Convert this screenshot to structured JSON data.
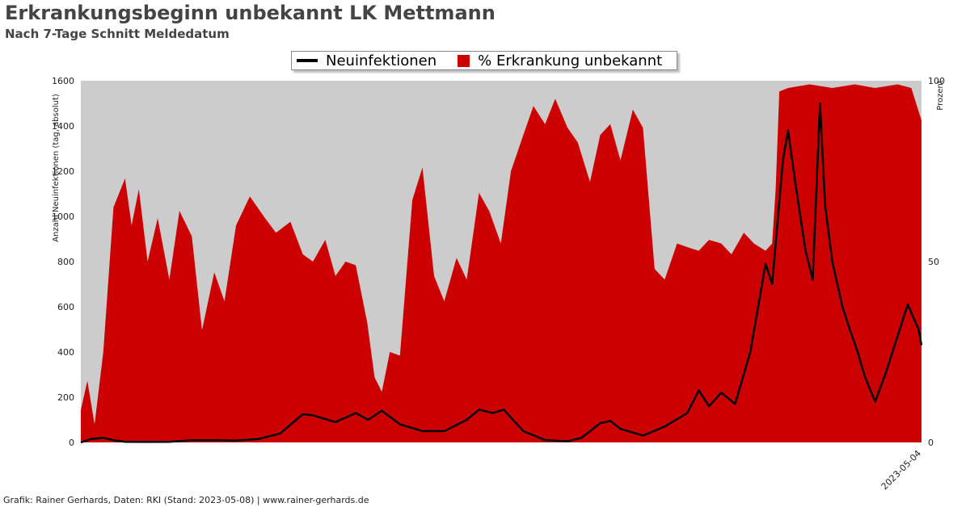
{
  "title": "Erkrankungsbeginn unbekannt LK Mettmann",
  "subtitle": "Nach 7-Tage Schnitt Meldedatum",
  "footer": "Grafik: Rainer Gerhards, Daten: RKI (Stand: 2023-05-08) | www.rainer-gerhards.de",
  "colors": {
    "plot_bg": "#cccccc",
    "area": "#cc0000",
    "line": "#000000"
  },
  "chart_data": {
    "type": "area",
    "title": "Erkrankungsbeginn unbekannt LK Mettmann",
    "subtitle": "Nach 7-Tage Schnitt Meldedatum",
    "ylabel_left": "Anzahl Neuinfektionen (tag, absolut)",
    "ylabel_right": "Prozent",
    "ylim_left": [
      0,
      1600
    ],
    "ylim_right": [
      0,
      100
    ],
    "yticks_left": [
      "0",
      "200",
      "400",
      "600",
      "800",
      "1000",
      "1200",
      "1400",
      "1600"
    ],
    "yticks_right": [
      "0",
      "50",
      "100"
    ],
    "legend_position": "top-center",
    "grid": false,
    "x_range": [
      "2020-03-01",
      "2023-05-04"
    ],
    "xtick_labels_legible": [
      "2023-05-04"
    ],
    "series": [
      {
        "name": "Neuinfektionen",
        "type": "line",
        "axis": "left",
        "points": [
          [
            "2020-03-01",
            0
          ],
          [
            "2020-03-15",
            15
          ],
          [
            "2020-04-01",
            20
          ],
          [
            "2020-04-15",
            10
          ],
          [
            "2020-05-01",
            3
          ],
          [
            "2020-06-01",
            2
          ],
          [
            "2020-07-01",
            3
          ],
          [
            "2020-08-01",
            10
          ],
          [
            "2020-09-01",
            10
          ],
          [
            "2020-10-01",
            8
          ],
          [
            "2020-11-01",
            15
          ],
          [
            "2020-12-01",
            40
          ],
          [
            "2021-01-01",
            125
          ],
          [
            "2021-01-15",
            120
          ],
          [
            "2021-02-15",
            90
          ],
          [
            "2021-03-15",
            130
          ],
          [
            "2021-04-01",
            100
          ],
          [
            "2021-04-20",
            140
          ],
          [
            "2021-05-15",
            80
          ],
          [
            "2021-06-15",
            50
          ],
          [
            "2021-07-15",
            50
          ],
          [
            "2021-08-15",
            100
          ],
          [
            "2021-09-01",
            145
          ],
          [
            "2021-09-20",
            130
          ],
          [
            "2021-10-05",
            145
          ],
          [
            "2021-11-01",
            50
          ],
          [
            "2021-12-01",
            10
          ],
          [
            "2022-01-01",
            5
          ],
          [
            "2022-01-20",
            20
          ],
          [
            "2022-02-15",
            85
          ],
          [
            "2022-03-01",
            95
          ],
          [
            "2022-03-15",
            60
          ],
          [
            "2022-04-15",
            30
          ],
          [
            "2022-05-15",
            70
          ],
          [
            "2022-06-15",
            130
          ],
          [
            "2022-07-01",
            230
          ],
          [
            "2022-07-15",
            160
          ],
          [
            "2022-08-01",
            220
          ],
          [
            "2022-08-20",
            170
          ],
          [
            "2022-09-10",
            400
          ],
          [
            "2022-10-01",
            790
          ],
          [
            "2022-10-10",
            700
          ],
          [
            "2022-10-25",
            1250
          ],
          [
            "2022-11-01",
            1380
          ],
          [
            "2022-11-10",
            1170
          ],
          [
            "2022-11-25",
            850
          ],
          [
            "2022-12-05",
            720
          ],
          [
            "2022-12-15",
            1500
          ],
          [
            "2022-12-22",
            1050
          ],
          [
            "2023-01-01",
            800
          ],
          [
            "2023-01-15",
            600
          ],
          [
            "2023-01-25",
            500
          ],
          [
            "2023-02-05",
            400
          ],
          [
            "2023-02-15",
            290
          ],
          [
            "2023-03-01",
            180
          ],
          [
            "2023-03-15",
            300
          ],
          [
            "2023-03-30",
            450
          ],
          [
            "2023-04-15",
            610
          ],
          [
            "2023-04-30",
            500
          ],
          [
            "2023-05-04",
            430
          ]
        ]
      },
      {
        "name": "% Erkrankung unbekannt",
        "type": "area",
        "axis": "right",
        "points": [
          [
            "2020-03-01",
            9
          ],
          [
            "2020-03-10",
            17
          ],
          [
            "2020-03-20",
            5
          ],
          [
            "2020-04-01",
            25
          ],
          [
            "2020-04-15",
            65
          ],
          [
            "2020-05-01",
            73
          ],
          [
            "2020-05-10",
            60
          ],
          [
            "2020-05-20",
            70
          ],
          [
            "2020-06-01",
            50
          ],
          [
            "2020-06-15",
            62
          ],
          [
            "2020-07-01",
            45
          ],
          [
            "2020-07-15",
            64
          ],
          [
            "2020-08-01",
            57
          ],
          [
            "2020-08-15",
            31
          ],
          [
            "2020-09-01",
            47
          ],
          [
            "2020-09-15",
            39
          ],
          [
            "2020-10-01",
            60
          ],
          [
            "2020-10-20",
            68
          ],
          [
            "2020-11-10",
            62
          ],
          [
            "2020-11-25",
            58
          ],
          [
            "2020-12-15",
            61
          ],
          [
            "2021-01-01",
            52
          ],
          [
            "2021-01-15",
            50
          ],
          [
            "2021-02-01",
            56
          ],
          [
            "2021-02-15",
            46
          ],
          [
            "2021-03-01",
            50
          ],
          [
            "2021-03-15",
            49
          ],
          [
            "2021-03-31",
            33
          ],
          [
            "2021-04-10",
            18
          ],
          [
            "2021-04-20",
            14
          ],
          [
            "2021-05-01",
            25
          ],
          [
            "2021-05-15",
            24
          ],
          [
            "2021-06-01",
            67
          ],
          [
            "2021-06-15",
            76
          ],
          [
            "2021-07-01",
            46
          ],
          [
            "2021-07-15",
            39
          ],
          [
            "2021-08-01",
            51
          ],
          [
            "2021-08-15",
            45
          ],
          [
            "2021-09-01",
            69
          ],
          [
            "2021-09-15",
            64
          ],
          [
            "2021-10-01",
            55
          ],
          [
            "2021-10-15",
            75
          ],
          [
            "2021-11-01",
            85
          ],
          [
            "2021-11-15",
            93
          ],
          [
            "2021-12-01",
            88
          ],
          [
            "2021-12-15",
            95
          ],
          [
            "2022-01-01",
            87
          ],
          [
            "2022-01-15",
            83
          ],
          [
            "2022-02-01",
            72
          ],
          [
            "2022-02-15",
            85
          ],
          [
            "2022-03-01",
            88
          ],
          [
            "2022-03-15",
            78
          ],
          [
            "2022-04-01",
            92
          ],
          [
            "2022-04-15",
            87
          ],
          [
            "2022-05-01",
            48
          ],
          [
            "2022-05-15",
            45
          ],
          [
            "2022-06-01",
            55
          ],
          [
            "2022-06-15",
            54
          ],
          [
            "2022-07-01",
            53
          ],
          [
            "2022-07-15",
            56
          ],
          [
            "2022-08-01",
            55
          ],
          [
            "2022-08-15",
            52
          ],
          [
            "2022-09-01",
            58
          ],
          [
            "2022-09-15",
            55
          ],
          [
            "2022-10-01",
            53
          ],
          [
            "2022-10-10",
            55
          ],
          [
            "2022-10-15",
            70
          ],
          [
            "2022-10-20",
            97
          ],
          [
            "2022-11-01",
            98
          ],
          [
            "2022-12-01",
            99
          ],
          [
            "2023-01-01",
            98
          ],
          [
            "2023-02-01",
            99
          ],
          [
            "2023-03-01",
            98
          ],
          [
            "2023-04-01",
            99
          ],
          [
            "2023-04-20",
            98
          ],
          [
            "2023-05-04",
            89
          ]
        ]
      }
    ]
  }
}
